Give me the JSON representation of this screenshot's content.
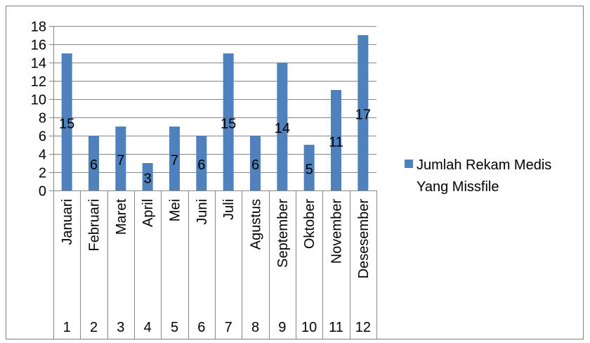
{
  "chart_data": {
    "type": "bar",
    "categories": [
      "Januari",
      "Februari",
      "Maret",
      "April",
      "Mei",
      "Juni",
      "Juli",
      "Agustus",
      "September",
      "Oktober",
      "November",
      "Desesember"
    ],
    "category_numbers": [
      "1",
      "2",
      "3",
      "4",
      "5",
      "6",
      "7",
      "8",
      "9",
      "10",
      "11",
      "12"
    ],
    "series": [
      {
        "name": "Jumlah Rekam Medis Yang Missfile",
        "values": [
          15,
          6,
          7,
          3,
          7,
          6,
          15,
          6,
          14,
          5,
          11,
          17
        ],
        "color": "#4f81bd"
      }
    ],
    "y_ticks": [
      "0",
      "2",
      "4",
      "6",
      "8",
      "10",
      "12",
      "14",
      "16",
      "18"
    ],
    "ylim": [
      0,
      18
    ],
    "grid": true,
    "data_labels": true,
    "legend": {
      "position": "right",
      "lines": [
        "Jumlah Rekam Medis",
        "Yang Missfile"
      ]
    }
  }
}
